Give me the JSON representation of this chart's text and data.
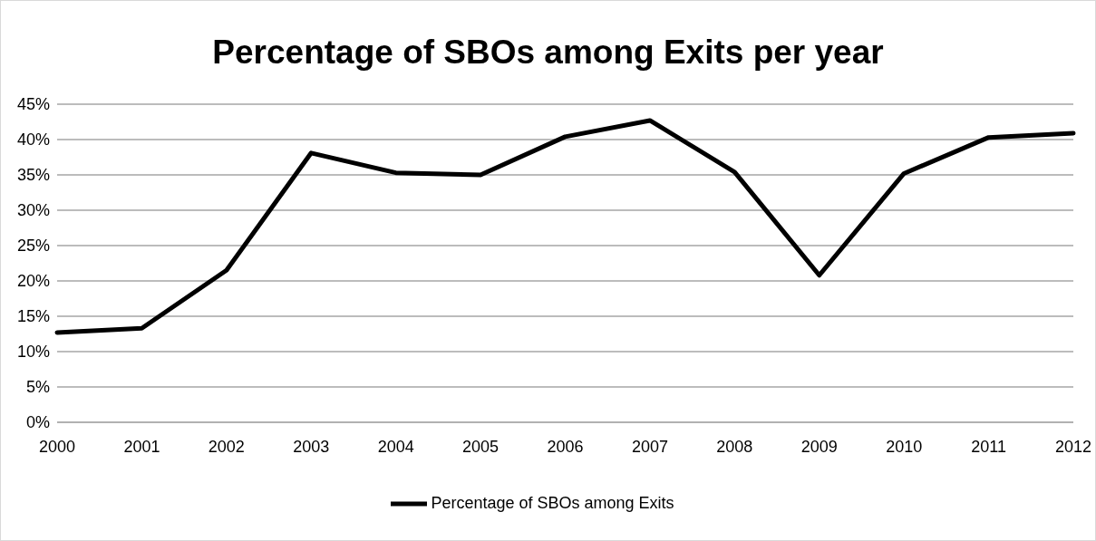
{
  "chart_data": {
    "type": "line",
    "title": "Percentage of SBOs among Exits per year",
    "categories": [
      "2000",
      "2001",
      "2002",
      "2003",
      "2004",
      "2005",
      "2006",
      "2007",
      "2008",
      "2009",
      "2010",
      "2011",
      "2012"
    ],
    "series": [
      {
        "name": "Percentage of SBOs among Exits",
        "color": "#000000",
        "values": [
          12.7,
          13.3,
          21.5,
          38.1,
          35.3,
          35.0,
          40.4,
          42.7,
          35.4,
          20.8,
          35.2,
          40.3,
          40.9
        ]
      }
    ],
    "ylim": [
      0,
      45
    ],
    "yticks": [
      {
        "value": 0,
        "label": "0%"
      },
      {
        "value": 5,
        "label": "5%"
      },
      {
        "value": 10,
        "label": "10%"
      },
      {
        "value": 15,
        "label": "15%"
      },
      {
        "value": 20,
        "label": "20%"
      },
      {
        "value": 25,
        "label": "25%"
      },
      {
        "value": 30,
        "label": "30%"
      },
      {
        "value": 35,
        "label": "35%"
      },
      {
        "value": 40,
        "label": "40%"
      },
      {
        "value": 45,
        "label": "45%"
      }
    ],
    "grid": "y",
    "legend": "bottom",
    "marker": "none",
    "line_style": "solid"
  }
}
